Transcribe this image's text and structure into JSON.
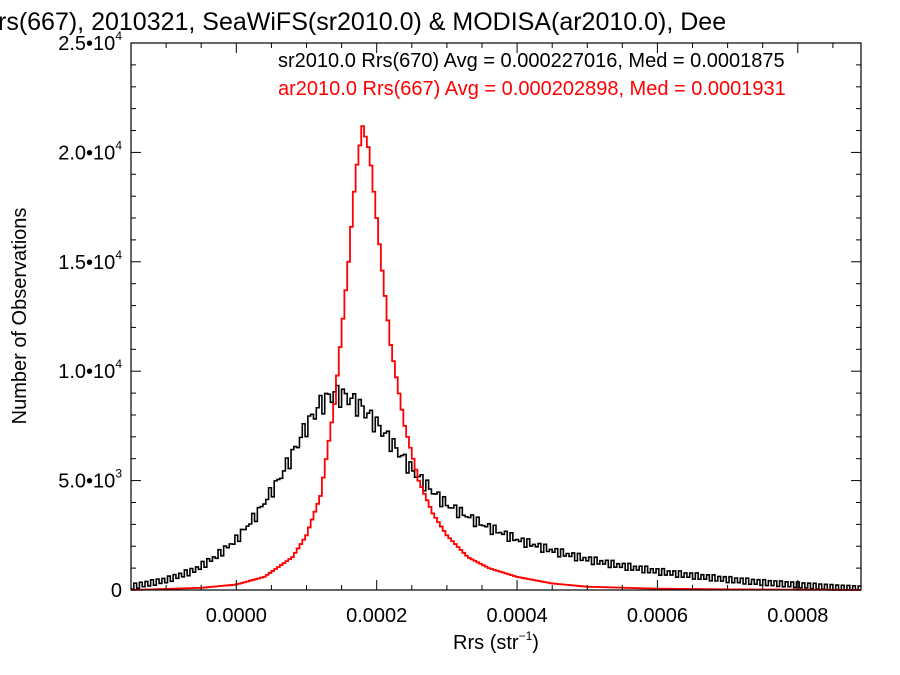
{
  "chart_data": {
    "type": "line",
    "title": "rs(667), 2010321, SeaWiFS(sr2010.0) & MODISA(ar2010.0), Dee",
    "xlabel": {
      "main": "Rrs (str",
      "sup": "−1",
      "close": ")"
    },
    "ylabel": "Number of Observations",
    "xlim": [
      -0.00015,
      0.00089
    ],
    "ylim": [
      0,
      25000
    ],
    "x_ticks": [
      {
        "value": 0.0,
        "label": "0.0000"
      },
      {
        "value": 0.0002,
        "label": "0.0002"
      },
      {
        "value": 0.0004,
        "label": "0.0004"
      },
      {
        "value": 0.0006,
        "label": "0.0006"
      },
      {
        "value": 0.0008,
        "label": "0.0008"
      }
    ],
    "y_ticks": [
      {
        "value": 0,
        "label": "0",
        "exp": ""
      },
      {
        "value": 5000,
        "label": "5.0•10",
        "exp": "3"
      },
      {
        "value": 10000,
        "label": "1.0•10",
        "exp": "4"
      },
      {
        "value": 15000,
        "label": "1.5•10",
        "exp": "4"
      },
      {
        "value": 20000,
        "label": "2.0•10",
        "exp": "4"
      },
      {
        "value": 25000,
        "label": "2.5•10",
        "exp": "4"
      }
    ],
    "grid": false,
    "legend_position": "top-right",
    "series": [
      {
        "name": "sr2010.0",
        "label": "sr2010.0 Rrs(670) Avg = 0.000227016, Med = 0.0001875",
        "color": "#000000",
        "x": [
          -0.00015,
          -0.0001,
          -6e-05,
          -3e-05,
          0.0,
          3e-05,
          6e-05,
          8e-05,
          0.0001,
          0.00012,
          0.00014,
          0.00016,
          0.00018,
          0.0002,
          0.00022,
          0.00025,
          0.00028,
          0.0003,
          0.00035,
          0.0004,
          0.00045,
          0.0005,
          0.00055,
          0.0006,
          0.00065,
          0.0007,
          0.00075,
          0.0008,
          0.00085,
          0.00089
        ],
        "y": [
          150,
          450,
          900,
          1500,
          2300,
          3500,
          5000,
          6200,
          7500,
          8500,
          9000,
          8800,
          8300,
          7600,
          6800,
          5500,
          4500,
          3900,
          3000,
          2300,
          1800,
          1400,
          1100,
          850,
          650,
          480,
          340,
          230,
          120,
          60
        ]
      },
      {
        "name": "ar2010.0",
        "label": "ar2010.0 Rrs(667) Avg = 0.000202898, Med = 0.0001931",
        "color": "#ff0000",
        "x": [
          -0.00015,
          -5e-05,
          0.0,
          4e-05,
          8e-05,
          0.0001,
          0.00012,
          0.00014,
          0.00016,
          0.00017,
          0.00018,
          0.00019,
          0.0002,
          0.00021,
          0.00022,
          0.00024,
          0.00026,
          0.00028,
          0.0003,
          0.00033,
          0.00036,
          0.0004,
          0.00045,
          0.0005,
          0.0006,
          0.0007,
          0.0008,
          0.00089
        ],
        "y": [
          0,
          100,
          250,
          600,
          1500,
          2500,
          4300,
          8500,
          15000,
          19000,
          21200,
          20000,
          17000,
          14000,
          11200,
          7500,
          5000,
          3500,
          2500,
          1500,
          1000,
          600,
          300,
          150,
          60,
          30,
          15,
          5
        ]
      }
    ]
  }
}
